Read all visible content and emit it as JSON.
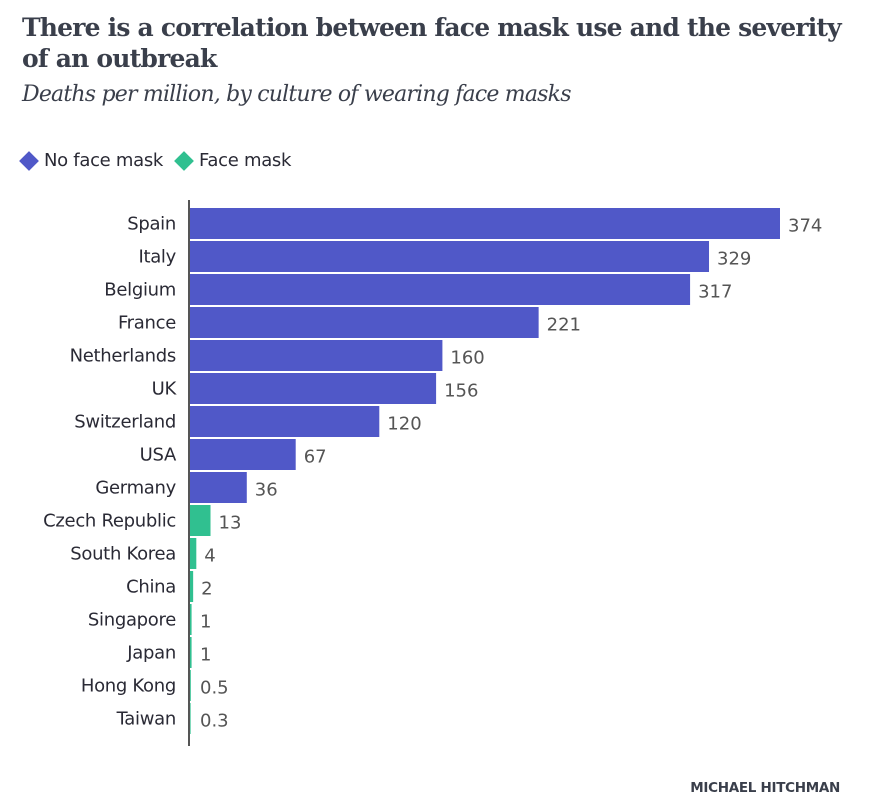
{
  "chart_data": {
    "type": "bar",
    "orientation": "horizontal",
    "title": "There is a correlation between face mask use and the severity of an outbreak",
    "subtitle": "Deaths per million, by culture of wearing face masks",
    "xlabel": "",
    "ylabel": "",
    "xlim": [
      0,
      374
    ],
    "grid": false,
    "legend_position": "top-left",
    "legend": [
      {
        "name": "No face mask",
        "color": "#5058c8"
      },
      {
        "name": "Face mask",
        "color": "#30c090"
      }
    ],
    "categories": [
      "Spain",
      "Italy",
      "Belgium",
      "France",
      "Netherlands",
      "UK",
      "Switzerland",
      "USA",
      "Germany",
      "Czech Republic",
      "South Korea",
      "China",
      "Singapore",
      "Japan",
      "Hong Kong",
      "Taiwan"
    ],
    "values": [
      374,
      329,
      317,
      221,
      160,
      156,
      120,
      67,
      36,
      13,
      4,
      2,
      1,
      1,
      0.5,
      0.3
    ],
    "value_labels": [
      "374",
      "329",
      "317",
      "221",
      "160",
      "156",
      "120",
      "67",
      "36",
      "13",
      "4",
      "2",
      "1",
      "1",
      "0.5",
      "0.3"
    ],
    "groups": [
      "No face mask",
      "No face mask",
      "No face mask",
      "No face mask",
      "No face mask",
      "No face mask",
      "No face mask",
      "No face mask",
      "No face mask",
      "Face mask",
      "Face mask",
      "Face mask",
      "Face mask",
      "Face mask",
      "Face mask",
      "Face mask"
    ]
  },
  "footer": {
    "credit": "MICHAEL HITCHMAN"
  }
}
